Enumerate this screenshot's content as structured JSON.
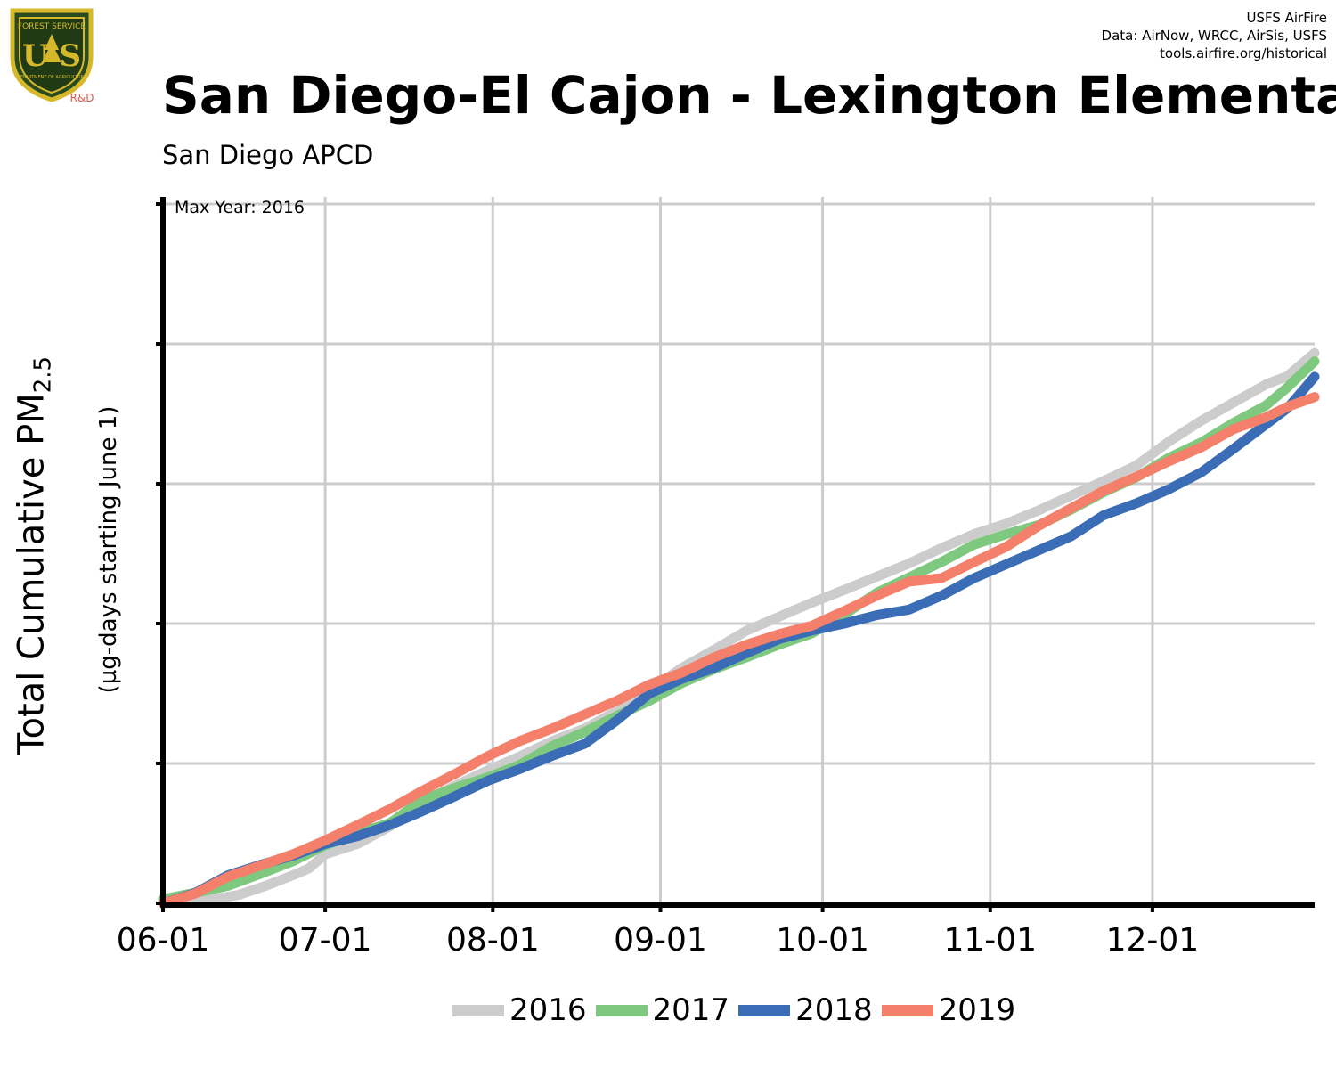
{
  "logo": {
    "text_top": "FOREST SERVICE",
    "text_main": "U S",
    "text_bottom": "DEPARTMENT OF AGRICULTURE",
    "rd_label": "R&D"
  },
  "credits": {
    "line1": "USFS AirFire",
    "line2": "Data: AirNow, WRCC, AirSis, USFS",
    "line3": "tools.airfire.org/historical"
  },
  "title": "San Diego-El Cajon - Lexington Elementary School",
  "subtitle": "San Diego APCD",
  "annotation": "Max Year: 2016",
  "chart_data": {
    "type": "line",
    "title": "San Diego-El Cajon - Lexington Elementary School",
    "subtitle": "San Diego APCD",
    "ylabel": "Total Cumulative PM2.5",
    "ylabel_main": "Total Cumulative PM",
    "ylabel_sub": "2.5",
    "ylabel_units": "(µg-days starting June 1)",
    "xlabel": "",
    "x_ticks": [
      "06-01",
      "07-01",
      "08-01",
      "09-01",
      "10-01",
      "11-01",
      "12-01"
    ],
    "x_tick_days": [
      0,
      30,
      61,
      92,
      122,
      153,
      183
    ],
    "xlim": [
      0,
      213
    ],
    "y_tick_labels_shown": false,
    "y_max_fraction_grid": [
      0,
      0.2,
      0.4,
      0.6,
      0.8,
      1.0
    ],
    "ylim_fraction": [
      0,
      1.0
    ],
    "grid": true,
    "legend_position": "bottom",
    "annotation": "Max Year: 2016",
    "series": [
      {
        "name": "2016",
        "color": "#cccccc",
        "points": [
          [
            0,
            0
          ],
          [
            7,
            0.003
          ],
          [
            14,
            0.012
          ],
          [
            19,
            0.025
          ],
          [
            24,
            0.04
          ],
          [
            27,
            0.05
          ],
          [
            30,
            0.07
          ],
          [
            36,
            0.085
          ],
          [
            42,
            0.11
          ],
          [
            48,
            0.145
          ],
          [
            54,
            0.168
          ],
          [
            60,
            0.19
          ],
          [
            66,
            0.21
          ],
          [
            72,
            0.232
          ],
          [
            78,
            0.25
          ],
          [
            84,
            0.275
          ],
          [
            90,
            0.305
          ],
          [
            96,
            0.337
          ],
          [
            102,
            0.363
          ],
          [
            108,
            0.39
          ],
          [
            114,
            0.41
          ],
          [
            120,
            0.43
          ],
          [
            126,
            0.448
          ],
          [
            132,
            0.467
          ],
          [
            138,
            0.486
          ],
          [
            144,
            0.508
          ],
          [
            150,
            0.528
          ],
          [
            156,
            0.543
          ],
          [
            162,
            0.562
          ],
          [
            168,
            0.583
          ],
          [
            174,
            0.604
          ],
          [
            180,
            0.626
          ],
          [
            186,
            0.66
          ],
          [
            192,
            0.69
          ],
          [
            198,
            0.716
          ],
          [
            204,
            0.742
          ],
          [
            208,
            0.754
          ],
          [
            213,
            0.787
          ]
        ]
      },
      {
        "name": "2017",
        "color": "#7fc87f",
        "points": [
          [
            0,
            0.006
          ],
          [
            6,
            0.015
          ],
          [
            12,
            0.025
          ],
          [
            18,
            0.042
          ],
          [
            24,
            0.06
          ],
          [
            30,
            0.083
          ],
          [
            36,
            0.1
          ],
          [
            42,
            0.115
          ],
          [
            48,
            0.148
          ],
          [
            54,
            0.165
          ],
          [
            60,
            0.18
          ],
          [
            66,
            0.198
          ],
          [
            72,
            0.225
          ],
          [
            78,
            0.245
          ],
          [
            84,
            0.268
          ],
          [
            90,
            0.29
          ],
          [
            96,
            0.315
          ],
          [
            102,
            0.335
          ],
          [
            108,
            0.352
          ],
          [
            114,
            0.37
          ],
          [
            120,
            0.386
          ],
          [
            126,
            0.413
          ],
          [
            132,
            0.444
          ],
          [
            138,
            0.466
          ],
          [
            144,
            0.488
          ],
          [
            150,
            0.513
          ],
          [
            156,
            0.528
          ],
          [
            162,
            0.541
          ],
          [
            168,
            0.563
          ],
          [
            174,
            0.588
          ],
          [
            180,
            0.609
          ],
          [
            186,
            0.637
          ],
          [
            192,
            0.659
          ],
          [
            198,
            0.687
          ],
          [
            204,
            0.712
          ],
          [
            208,
            0.738
          ],
          [
            213,
            0.775
          ]
        ]
      },
      {
        "name": "2018",
        "color": "#3a6db5",
        "points": [
          [
            0,
            0
          ],
          [
            6,
            0.015
          ],
          [
            12,
            0.04
          ],
          [
            18,
            0.055
          ],
          [
            24,
            0.068
          ],
          [
            30,
            0.085
          ],
          [
            36,
            0.096
          ],
          [
            42,
            0.112
          ],
          [
            48,
            0.132
          ],
          [
            54,
            0.153
          ],
          [
            60,
            0.175
          ],
          [
            66,
            0.192
          ],
          [
            72,
            0.211
          ],
          [
            78,
            0.228
          ],
          [
            84,
            0.262
          ],
          [
            90,
            0.3
          ],
          [
            96,
            0.321
          ],
          [
            102,
            0.337
          ],
          [
            108,
            0.358
          ],
          [
            114,
            0.378
          ],
          [
            120,
            0.39
          ],
          [
            126,
            0.4
          ],
          [
            132,
            0.412
          ],
          [
            138,
            0.42
          ],
          [
            144,
            0.44
          ],
          [
            150,
            0.465
          ],
          [
            156,
            0.485
          ],
          [
            162,
            0.505
          ],
          [
            168,
            0.525
          ],
          [
            174,
            0.555
          ],
          [
            180,
            0.572
          ],
          [
            186,
            0.592
          ],
          [
            192,
            0.616
          ],
          [
            198,
            0.65
          ],
          [
            204,
            0.685
          ],
          [
            208,
            0.708
          ],
          [
            213,
            0.753
          ]
        ]
      },
      {
        "name": "2019",
        "color": "#f4806b",
        "points": [
          [
            0,
            0
          ],
          [
            6,
            0.014
          ],
          [
            12,
            0.038
          ],
          [
            18,
            0.054
          ],
          [
            24,
            0.07
          ],
          [
            30,
            0.09
          ],
          [
            36,
            0.112
          ],
          [
            42,
            0.135
          ],
          [
            48,
            0.161
          ],
          [
            54,
            0.185
          ],
          [
            60,
            0.21
          ],
          [
            66,
            0.232
          ],
          [
            72,
            0.25
          ],
          [
            78,
            0.27
          ],
          [
            84,
            0.29
          ],
          [
            90,
            0.313
          ],
          [
            96,
            0.33
          ],
          [
            102,
            0.352
          ],
          [
            108,
            0.37
          ],
          [
            114,
            0.385
          ],
          [
            120,
            0.397
          ],
          [
            126,
            0.418
          ],
          [
            132,
            0.44
          ],
          [
            138,
            0.46
          ],
          [
            144,
            0.465
          ],
          [
            150,
            0.488
          ],
          [
            156,
            0.51
          ],
          [
            162,
            0.54
          ],
          [
            168,
            0.565
          ],
          [
            174,
            0.59
          ],
          [
            180,
            0.61
          ],
          [
            186,
            0.632
          ],
          [
            192,
            0.652
          ],
          [
            198,
            0.678
          ],
          [
            204,
            0.695
          ],
          [
            208,
            0.71
          ],
          [
            213,
            0.724
          ]
        ]
      }
    ]
  }
}
